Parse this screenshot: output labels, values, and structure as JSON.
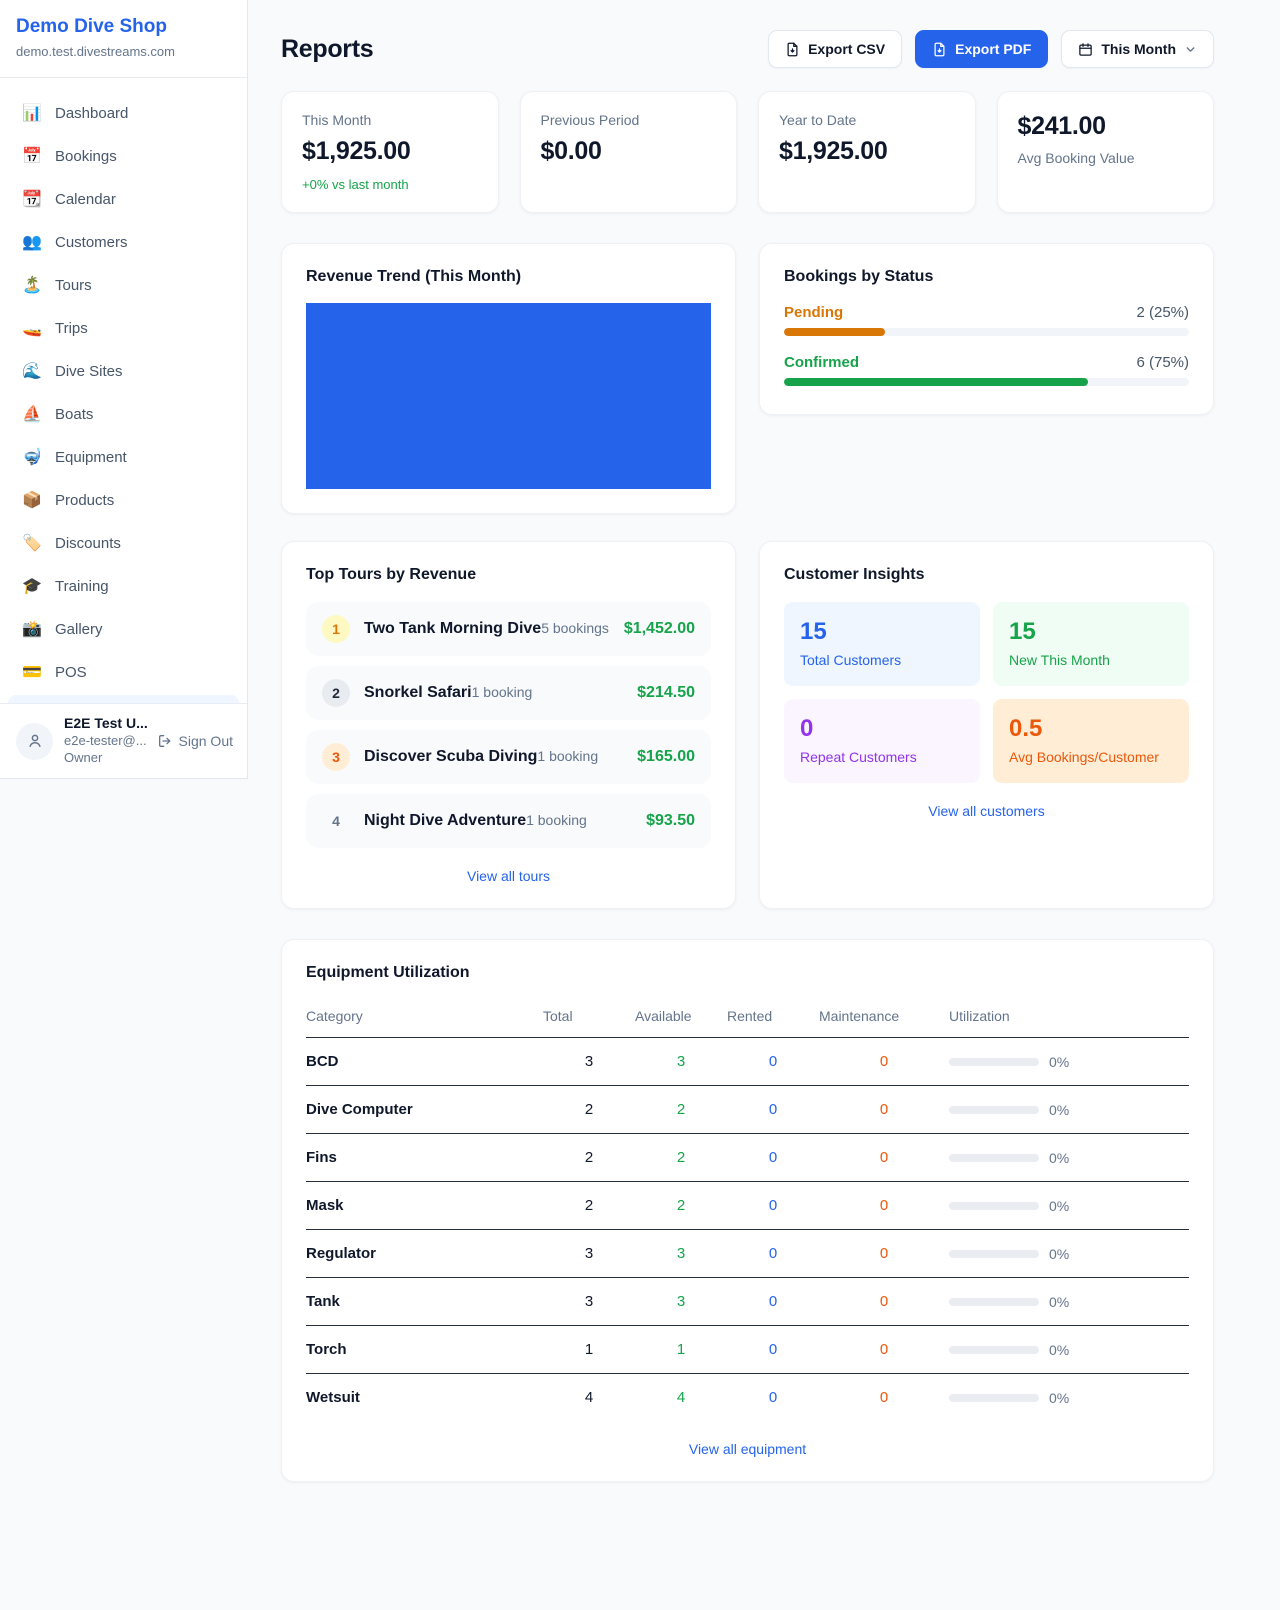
{
  "sidebar": {
    "shop_name": "Demo Dive Shop",
    "shop_domain": "demo.test.divestreams.com",
    "items": [
      {
        "icon": "📊",
        "label": "Dashboard"
      },
      {
        "icon": "📅",
        "label": "Bookings"
      },
      {
        "icon": "📆",
        "label": "Calendar"
      },
      {
        "icon": "👥",
        "label": "Customers"
      },
      {
        "icon": "🏝️",
        "label": "Tours"
      },
      {
        "icon": "🚤",
        "label": "Trips"
      },
      {
        "icon": "🌊",
        "label": "Dive Sites"
      },
      {
        "icon": "⛵",
        "label": "Boats"
      },
      {
        "icon": "🤿",
        "label": "Equipment"
      },
      {
        "icon": "📦",
        "label": "Products"
      },
      {
        "icon": "🏷️",
        "label": "Discounts"
      },
      {
        "icon": "🎓",
        "label": "Training"
      },
      {
        "icon": "📸",
        "label": "Gallery"
      },
      {
        "icon": "💳",
        "label": "POS"
      }
    ],
    "user": {
      "name": "E2E Test U...",
      "email": "e2e-tester@...",
      "role": "Owner",
      "sign_out": "Sign Out"
    }
  },
  "header": {
    "title": "Reports",
    "export_csv": "Export CSV",
    "export_pdf": "Export PDF",
    "period": "This Month"
  },
  "stats": [
    {
      "label": "This Month",
      "value": "$1,925.00",
      "delta": "+0% vs last month"
    },
    {
      "label": "Previous Period",
      "value": "$0.00"
    },
    {
      "label": "Year to Date",
      "value": "$1,925.00"
    },
    {
      "label": "Avg Booking Value",
      "value": "$241.00"
    }
  ],
  "revenue_trend": {
    "title": "Revenue Trend (This Month)",
    "chart_data": {
      "type": "bar",
      "categories": [
        "This Month"
      ],
      "values": [
        1925
      ],
      "bar_color": "#2563eb",
      "note": "single bar filling entire plot area"
    }
  },
  "bookings_by_status": {
    "title": "Bookings by Status",
    "rows": [
      {
        "label": "Pending",
        "count_text": "2 (25%)",
        "percent": 25,
        "color": "#d97706"
      },
      {
        "label": "Confirmed",
        "count_text": "6 (75%)",
        "percent": 75,
        "color": "#16a34a"
      }
    ]
  },
  "top_tours": {
    "title": "Top Tours by Revenue",
    "view_all": "View all tours",
    "items": [
      {
        "rank": "1",
        "name": "Two Tank Morning Dive",
        "bookings": "5 bookings",
        "revenue": "$1,452.00"
      },
      {
        "rank": "2",
        "name": "Snorkel Safari",
        "bookings": "1 booking",
        "revenue": "$214.50"
      },
      {
        "rank": "3",
        "name": "Discover Scuba Diving",
        "bookings": "1 booking",
        "revenue": "$165.00"
      },
      {
        "rank": "4",
        "name": "Night Dive Adventure",
        "bookings": "1 booking",
        "revenue": "$93.50"
      }
    ]
  },
  "customer_insights": {
    "title": "Customer Insights",
    "view_all": "View all customers",
    "boxes": [
      {
        "value": "15",
        "label": "Total Customers"
      },
      {
        "value": "15",
        "label": "New This Month"
      },
      {
        "value": "0",
        "label": "Repeat Customers"
      },
      {
        "value": "0.5",
        "label": "Avg Bookings/Customer"
      }
    ]
  },
  "equipment": {
    "title": "Equipment Utilization",
    "view_all": "View all equipment",
    "columns": [
      "Category",
      "Total",
      "Available",
      "Rented",
      "Maintenance",
      "Utilization"
    ],
    "rows": [
      {
        "category": "BCD",
        "total": "3",
        "available": "3",
        "rented": "0",
        "maintenance": "0",
        "utilization": "0%",
        "utilization_percent": 0
      },
      {
        "category": "Dive Computer",
        "total": "2",
        "available": "2",
        "rented": "0",
        "maintenance": "0",
        "utilization": "0%",
        "utilization_percent": 0
      },
      {
        "category": "Fins",
        "total": "2",
        "available": "2",
        "rented": "0",
        "maintenance": "0",
        "utilization": "0%",
        "utilization_percent": 0
      },
      {
        "category": "Mask",
        "total": "2",
        "available": "2",
        "rented": "0",
        "maintenance": "0",
        "utilization": "0%",
        "utilization_percent": 0
      },
      {
        "category": "Regulator",
        "total": "3",
        "available": "3",
        "rented": "0",
        "maintenance": "0",
        "utilization": "0%",
        "utilization_percent": 0
      },
      {
        "category": "Tank",
        "total": "3",
        "available": "3",
        "rented": "0",
        "maintenance": "0",
        "utilization": "0%",
        "utilization_percent": 0
      },
      {
        "category": "Torch",
        "total": "1",
        "available": "1",
        "rented": "0",
        "maintenance": "0",
        "utilization": "0%",
        "utilization_percent": 0
      },
      {
        "category": "Wetsuit",
        "total": "4",
        "available": "4",
        "rented": "0",
        "maintenance": "0",
        "utilization": "0%",
        "utilization_percent": 0
      }
    ]
  }
}
